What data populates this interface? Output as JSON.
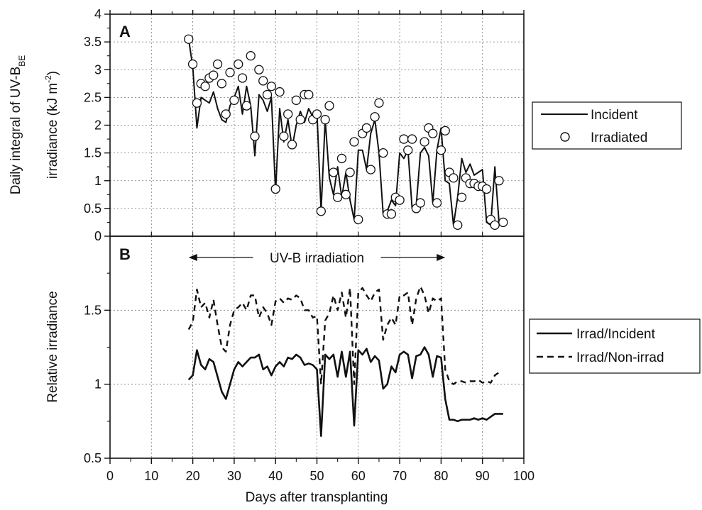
{
  "chart_data": [
    {
      "panel": "A",
      "type": "line",
      "ylabel_main": "Daily integral of UV-B",
      "ylabel_sub": "BE",
      "ylabel_line2": "irradiance (kJ m",
      "ylabel_sup": "-2",
      "ylabel_close": ")",
      "xlim": [
        0,
        100
      ],
      "ylim": [
        0,
        4
      ],
      "yticks": [
        "0",
        "0.5",
        "1",
        "1.5",
        "2",
        "2.5",
        "3",
        "3.5",
        "4"
      ],
      "grid": true,
      "legend_position": "right",
      "series": [
        {
          "name": "Incident",
          "style": "solid-line",
          "x": [
            19,
            20,
            21,
            22,
            23,
            24,
            25,
            26,
            27,
            28,
            29,
            30,
            31,
            32,
            33,
            34,
            35,
            36,
            37,
            38,
            39,
            40,
            41,
            42,
            43,
            44,
            45,
            46,
            47,
            48,
            49,
            50,
            51,
            52,
            53,
            54,
            55,
            56,
            57,
            58,
            59,
            60,
            61,
            62,
            63,
            64,
            65,
            66,
            67,
            68,
            69,
            70,
            71,
            72,
            73,
            74,
            75,
            76,
            77,
            78,
            79,
            80,
            81,
            82,
            83,
            84,
            85,
            86,
            87,
            88,
            89,
            90,
            91,
            92,
            93,
            94,
            95
          ],
          "y": [
            3.55,
            3.05,
            1.95,
            2.5,
            2.45,
            2.4,
            2.6,
            2.3,
            2.1,
            2.05,
            2.35,
            2.5,
            2.7,
            2.2,
            2.7,
            2.35,
            1.45,
            2.55,
            2.45,
            2.25,
            2.5,
            0.8,
            2.3,
            1.7,
            2.1,
            1.6,
            2.0,
            2.25,
            2.05,
            2.3,
            2.15,
            2.25,
            0.45,
            2.1,
            1.05,
            0.75,
            1.25,
            0.7,
            1.15,
            0.65,
            0.3,
            1.55,
            1.55,
            1.2,
            1.85,
            2.1,
            1.5,
            0.4,
            0.45,
            0.65,
            0.55,
            1.5,
            1.4,
            1.55,
            0.5,
            0.55,
            1.5,
            1.6,
            1.45,
            0.6,
            1.55,
            1.95,
            1.0,
            0.95,
            0.2,
            0.7,
            1.4,
            1.15,
            1.3,
            1.1,
            1.15,
            1.2,
            0.25,
            0.2,
            1.25,
            0.25,
            0.25
          ]
        },
        {
          "name": "Irradiated",
          "style": "open-circle",
          "x": [
            19,
            20,
            21,
            22,
            23,
            24,
            25,
            26,
            27,
            28,
            29,
            30,
            31,
            32,
            33,
            34,
            35,
            36,
            37,
            38,
            39,
            40,
            41,
            42,
            43,
            44,
            45,
            46,
            47,
            48,
            49,
            50,
            51,
            52,
            53,
            54,
            55,
            56,
            57,
            58,
            59,
            60,
            61,
            62,
            63,
            64,
            65,
            66,
            67,
            68,
            69,
            70,
            71,
            72,
            73,
            74,
            75,
            76,
            77,
            78,
            79,
            80,
            81,
            82,
            83,
            84,
            85,
            86,
            87,
            88,
            89,
            90,
            91,
            92,
            93,
            94,
            95
          ],
          "y": [
            3.55,
            3.1,
            2.4,
            2.75,
            2.7,
            2.85,
            2.9,
            3.1,
            2.75,
            2.2,
            2.95,
            2.45,
            3.1,
            2.85,
            2.35,
            3.25,
            1.8,
            3.0,
            2.8,
            2.55,
            2.7,
            0.85,
            2.6,
            1.8,
            2.2,
            1.65,
            2.45,
            2.1,
            2.55,
            2.55,
            2.1,
            2.2,
            0.45,
            2.1,
            2.35,
            1.15,
            0.7,
            1.4,
            0.75,
            1.15,
            1.7,
            0.3,
            1.85,
            1.95,
            1.2,
            2.15,
            2.4,
            1.5,
            0.4,
            0.4,
            0.7,
            0.65,
            1.75,
            1.55,
            1.75,
            0.5,
            0.6,
            1.7,
            1.95,
            1.85,
            0.6,
            1.55,
            1.9,
            1.15,
            1.05,
            0.2,
            0.7,
            1.05,
            0.95,
            0.95,
            0.9,
            0.9,
            0.85,
            0.3,
            0.2,
            1.0,
            0.25
          ]
        }
      ]
    },
    {
      "panel": "B",
      "type": "line",
      "ylabel": "Relative irradiance",
      "xlabel": "Days after transplanting",
      "xlim": [
        0,
        100
      ],
      "ylim": [
        0.5,
        2.0
      ],
      "xticks": [
        "0",
        "10",
        "20",
        "30",
        "40",
        "50",
        "60",
        "70",
        "80",
        "90",
        "100"
      ],
      "yticks": [
        "0.5",
        "1",
        "1.5"
      ],
      "grid": true,
      "legend_position": "right",
      "annotation": "UV-B irradiation",
      "annotation_range": [
        19,
        81
      ],
      "series": [
        {
          "name": "Irrad/Incident",
          "style": "solid-line",
          "x": [
            19,
            20,
            21,
            22,
            23,
            24,
            25,
            26,
            27,
            28,
            29,
            30,
            31,
            32,
            33,
            34,
            35,
            36,
            37,
            38,
            39,
            40,
            41,
            42,
            43,
            44,
            45,
            46,
            47,
            48,
            49,
            50,
            51,
            52,
            53,
            54,
            55,
            56,
            57,
            58,
            59,
            60,
            61,
            62,
            63,
            64,
            65,
            66,
            67,
            68,
            69,
            70,
            71,
            72,
            73,
            74,
            75,
            76,
            77,
            78,
            79,
            80,
            81,
            82,
            83,
            84,
            85,
            86,
            87,
            88,
            89,
            90,
            91,
            92,
            93,
            94,
            95
          ],
          "y": [
            1.03,
            1.06,
            1.23,
            1.13,
            1.1,
            1.17,
            1.15,
            1.05,
            0.95,
            0.9,
            1.0,
            1.1,
            1.15,
            1.12,
            1.15,
            1.18,
            1.18,
            1.2,
            1.1,
            1.12,
            1.06,
            1.12,
            1.15,
            1.12,
            1.18,
            1.17,
            1.2,
            1.18,
            1.13,
            1.14,
            1.13,
            1.1,
            0.65,
            1.2,
            1.17,
            1.2,
            1.05,
            1.22,
            1.05,
            1.22,
            0.72,
            1.23,
            1.2,
            1.24,
            1.15,
            1.19,
            1.16,
            0.97,
            1.0,
            1.12,
            1.08,
            1.2,
            1.22,
            1.2,
            1.04,
            1.19,
            1.2,
            1.25,
            1.2,
            1.05,
            1.19,
            1.18,
            0.9,
            0.76,
            0.76,
            0.75,
            0.76,
            0.76,
            0.76,
            0.77,
            0.76,
            0.77,
            0.76,
            0.78,
            0.8,
            0.8,
            0.8
          ]
        },
        {
          "name": "Irrad/Non-irrad",
          "style": "dashed-line",
          "x": [
            19,
            20,
            21,
            22,
            23,
            24,
            25,
            26,
            27,
            28,
            29,
            30,
            31,
            32,
            33,
            34,
            35,
            36,
            37,
            38,
            39,
            40,
            41,
            42,
            43,
            44,
            45,
            46,
            47,
            48,
            49,
            50,
            51,
            52,
            53,
            54,
            55,
            56,
            57,
            58,
            59,
            60,
            61,
            62,
            63,
            64,
            65,
            66,
            67,
            68,
            69,
            70,
            71,
            72,
            73,
            74,
            75,
            76,
            77,
            78,
            79,
            80,
            81,
            82,
            83,
            84,
            85,
            86,
            87,
            88,
            89,
            90,
            91,
            92,
            93,
            94
          ],
          "y": [
            1.37,
            1.42,
            1.64,
            1.52,
            1.55,
            1.45,
            1.57,
            1.4,
            1.25,
            1.22,
            1.4,
            1.5,
            1.52,
            1.55,
            1.5,
            1.6,
            1.6,
            1.45,
            1.52,
            1.48,
            1.4,
            1.56,
            1.58,
            1.55,
            1.58,
            1.57,
            1.6,
            1.58,
            1.5,
            1.5,
            1.45,
            1.46,
            1.0,
            1.43,
            1.48,
            1.6,
            1.5,
            1.62,
            1.45,
            1.65,
            1.0,
            1.62,
            1.65,
            1.6,
            1.56,
            1.62,
            1.64,
            1.3,
            1.4,
            1.45,
            1.4,
            1.6,
            1.6,
            1.62,
            1.4,
            1.58,
            1.66,
            1.6,
            1.48,
            1.58,
            1.56,
            1.58,
            1.1,
            1.02,
            1.0,
            1.02,
            1.02,
            1.01,
            1.02,
            1.02,
            1.03,
            1.01,
            1.02,
            1.01,
            1.06,
            1.08
          ]
        }
      ]
    }
  ],
  "legend_a": {
    "incident": "Incident",
    "irradiated": "Irradiated"
  },
  "legend_b": {
    "irrad_incident": "Irrad/Incident",
    "irrad_non": "Irrad/Non-irrad"
  }
}
